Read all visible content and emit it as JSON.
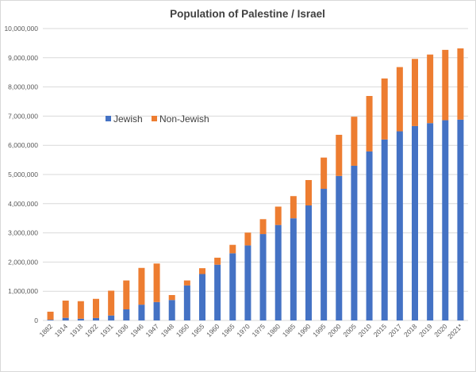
{
  "chart_data": {
    "type": "bar",
    "stacked": true,
    "title": "Population of Palestine / Israel",
    "xlabel": "",
    "ylabel": "",
    "ylim": [
      0,
      10000000
    ],
    "yticks": [
      0,
      1000000,
      2000000,
      3000000,
      4000000,
      5000000,
      6000000,
      7000000,
      8000000,
      9000000,
      10000000
    ],
    "ytick_labels": [
      "0",
      "1,000,000",
      "2,000,000",
      "3,000,000",
      "4,000,000",
      "5,000,000",
      "6,000,000",
      "7,000,000",
      "8,000,000",
      "9,000,000",
      "10,000,000"
    ],
    "grid": true,
    "legend_position": "left-middle",
    "categories": [
      "1882",
      "1914",
      "1918",
      "1922",
      "1931",
      "1936",
      "1946",
      "1947",
      "1948",
      "1950",
      "1955",
      "1960",
      "1965",
      "1970",
      "1975",
      "1980",
      "1985",
      "1990",
      "1995",
      "2000",
      "2005",
      "2010",
      "2015",
      "2017",
      "2018",
      "2019",
      "2020",
      "2021*"
    ],
    "series": [
      {
        "name": "Jewish",
        "color": "#4472C4",
        "values": [
          24000,
          90000,
          60000,
          84000,
          170000,
          380000,
          540000,
          630000,
          700000,
          1200000,
          1590000,
          1910000,
          2300000,
          2570000,
          2960000,
          3270000,
          3500000,
          3940000,
          4510000,
          4950000,
          5300000,
          5790000,
          6200000,
          6480000,
          6660000,
          6760000,
          6860000,
          6880000
        ]
      },
      {
        "name": "Non-Jewish",
        "color": "#ED7D31",
        "values": [
          276000,
          590000,
          600000,
          656000,
          850000,
          990000,
          1260000,
          1320000,
          170000,
          170000,
          200000,
          240000,
          290000,
          440000,
          510000,
          630000,
          760000,
          870000,
          1070000,
          1410000,
          1680000,
          1900000,
          2090000,
          2200000,
          2300000,
          2350000,
          2410000,
          2440000
        ]
      }
    ]
  }
}
